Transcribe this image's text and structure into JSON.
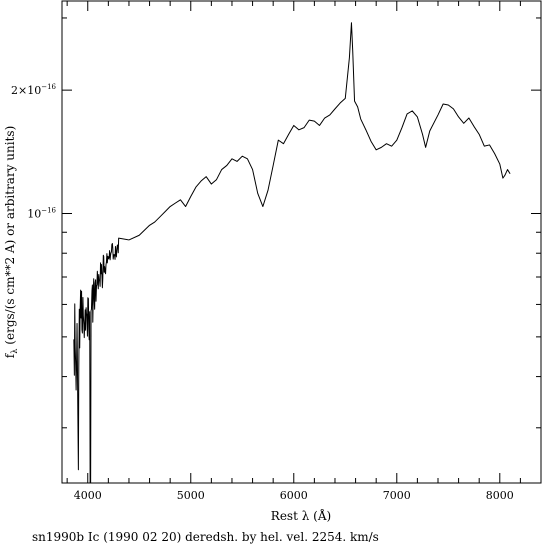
{
  "chart_data": {
    "type": "line",
    "title": "",
    "caption": "sn1990b Ic (1990 02 20) deredsh. by hel. vel. 2254. km/s",
    "xlabel": "Rest λ (Å)",
    "ylabel": "f_λ (ergs/(s cm**2 A) or arbitrary units)",
    "ylabel_main": "(ergs/(s cm**2 A) or arbitrary units)",
    "ylabel_sym": "f",
    "ylabel_sub": "λ",
    "y_scale": "log",
    "xlim": [
      3750,
      8400
    ],
    "ylim": [
      2.2e-17,
      3.3e-16
    ],
    "grid": false,
    "x_ticks": [
      {
        "value": 4000,
        "label": "4000"
      },
      {
        "value": 5000,
        "label": "5000"
      },
      {
        "value": 6000,
        "label": "6000"
      },
      {
        "value": 7000,
        "label": "7000"
      },
      {
        "value": 8000,
        "label": "8000"
      }
    ],
    "x_minor_step": 200,
    "y_ticks": [
      {
        "value": 1e-16,
        "mantissa": "10",
        "exp": "−16"
      },
      {
        "value": 2e-16,
        "mantissa": "2×10",
        "exp": "−16"
      }
    ],
    "y_minor_values": [
      3e-17,
      4e-17,
      5e-17,
      6e-17,
      7e-17,
      8e-17,
      9e-17,
      3e-16
    ],
    "series": [
      {
        "color": "#000000",
        "points": [
          [
            3865,
            4.93e-17
          ],
          [
            3870,
            4.03e-17
          ],
          [
            3874,
            6.02e-17
          ],
          [
            3878,
            4.72e-17
          ],
          [
            3883,
            4.26e-17
          ],
          [
            3887,
            3.71e-17
          ],
          [
            3891,
            4.19e-17
          ],
          [
            3896,
            5.39e-17
          ],
          [
            3900,
            4.21e-17
          ],
          [
            3904,
            3.22e-17
          ],
          [
            3909,
            2.37e-17
          ],
          [
            3913,
            4.2e-17
          ],
          [
            3918,
            5.84e-17
          ],
          [
            3922,
            4.7e-17
          ],
          [
            3926,
            5.82e-17
          ],
          [
            3931,
            6.5e-17
          ],
          [
            3935,
            5.56e-17
          ],
          [
            3940,
            6.46e-17
          ],
          [
            3944,
            5.2e-17
          ],
          [
            3948,
            5.11e-17
          ],
          [
            3953,
            6.24e-17
          ],
          [
            3957,
            5.63e-17
          ],
          [
            3962,
            5.37e-17
          ],
          [
            3966,
            4.98e-17
          ],
          [
            3970,
            5.3e-17
          ],
          [
            3975,
            5.82e-17
          ],
          [
            3979,
            5.19e-17
          ],
          [
            3984,
            5.89e-17
          ],
          [
            3988,
            5.65e-17
          ],
          [
            3992,
            5.68e-17
          ],
          [
            3997,
            5.02e-17
          ],
          [
            4001,
            6.23e-17
          ],
          [
            4006,
            6.2e-17
          ],
          [
            4010,
            5.22e-17
          ],
          [
            4014,
            4.92e-17
          ],
          [
            4019,
            5.76e-17
          ],
          [
            4023,
            2.1e-17
          ],
          [
            4028,
            2.1e-17
          ],
          [
            4032,
            5.79e-17
          ],
          [
            4036,
            5.84e-17
          ],
          [
            4041,
            6.48e-17
          ],
          [
            4045,
            6.69e-17
          ],
          [
            4049,
            5.43e-17
          ],
          [
            4054,
            6.46e-17
          ],
          [
            4058,
            6.93e-17
          ],
          [
            4063,
            6.13e-17
          ],
          [
            4067,
            5.84e-17
          ],
          [
            4071,
            6.76e-17
          ],
          [
            4076,
            6.89e-17
          ],
          [
            4080,
            6.11e-17
          ],
          [
            4085,
            6.67e-17
          ],
          [
            4089,
            6.69e-17
          ],
          [
            4093,
            7.23e-17
          ],
          [
            4098,
            6.89e-17
          ],
          [
            4102,
            6.55e-17
          ],
          [
            4107,
            7.1e-17
          ],
          [
            4111,
            6.88e-17
          ],
          [
            4115,
            6.86e-17
          ],
          [
            4120,
            6.64e-17
          ],
          [
            4124,
            7.58e-17
          ],
          [
            4129,
            7.13e-17
          ],
          [
            4133,
            7.51e-17
          ],
          [
            4137,
            7.13e-17
          ],
          [
            4142,
            6.59e-17
          ],
          [
            4146,
            6.94e-17
          ],
          [
            4151,
            7.91e-17
          ],
          [
            4155,
            7.86e-17
          ],
          [
            4159,
            7.19e-17
          ],
          [
            4164,
            7.42e-17
          ],
          [
            4168,
            7.21e-17
          ],
          [
            4173,
            7.13e-17
          ],
          [
            4177,
            7.5e-17
          ],
          [
            4181,
            7.6e-17
          ],
          [
            4186,
            7.98e-17
          ],
          [
            4190,
            7.58e-17
          ],
          [
            4195,
            7.86e-17
          ],
          [
            4199,
            7.84e-17
          ],
          [
            4203,
            7.75e-17
          ],
          [
            4208,
            7.82e-17
          ],
          [
            4212,
            8.12e-17
          ],
          [
            4217,
            7.71e-17
          ],
          [
            4221,
            7.9e-17
          ],
          [
            4225,
            8.01e-17
          ],
          [
            4230,
            8.06e-17
          ],
          [
            4234,
            8.4e-17
          ],
          [
            4239,
            8.45e-17
          ],
          [
            4243,
            8.23e-17
          ],
          [
            4247,
            7.74e-17
          ],
          [
            4252,
            7.93e-17
          ],
          [
            4256,
            7.94e-17
          ],
          [
            4261,
            7.88e-17
          ],
          [
            4265,
            7.73e-17
          ],
          [
            4269,
            8.31e-17
          ],
          [
            4274,
            7.97e-17
          ],
          [
            4278,
            7.84e-17
          ],
          [
            4283,
            8.2e-17
          ],
          [
            4287,
            8.36e-17
          ],
          [
            4291,
            8.38e-17
          ],
          [
            4296,
            8.02e-17
          ],
          [
            4300,
            8.71e-17
          ],
          [
            4400,
            8.62e-17
          ],
          [
            4500,
            8.85e-17
          ],
          [
            4600,
            9.36e-17
          ],
          [
            4650,
            9.53e-17
          ],
          [
            4700,
            9.81e-17
          ],
          [
            4750,
            1.01e-16
          ],
          [
            4800,
            1.04e-16
          ],
          [
            4850,
            1.06e-16
          ],
          [
            4900,
            1.08e-16
          ],
          [
            4950,
            1.04e-16
          ],
          [
            5000,
            1.1e-16
          ],
          [
            5050,
            1.16e-16
          ],
          [
            5100,
            1.2e-16
          ],
          [
            5150,
            1.23e-16
          ],
          [
            5200,
            1.18e-16
          ],
          [
            5250,
            1.21e-16
          ],
          [
            5300,
            1.28e-16
          ],
          [
            5350,
            1.31e-16
          ],
          [
            5400,
            1.36e-16
          ],
          [
            5450,
            1.34e-16
          ],
          [
            5500,
            1.38e-16
          ],
          [
            5550,
            1.36e-16
          ],
          [
            5600,
            1.28e-16
          ],
          [
            5650,
            1.12e-16
          ],
          [
            5700,
            1.04e-16
          ],
          [
            5750,
            1.14e-16
          ],
          [
            5800,
            1.31e-16
          ],
          [
            5850,
            1.51e-16
          ],
          [
            5900,
            1.48e-16
          ],
          [
            5950,
            1.56e-16
          ],
          [
            6000,
            1.64e-16
          ],
          [
            6050,
            1.6e-16
          ],
          [
            6100,
            1.62e-16
          ],
          [
            6150,
            1.69e-16
          ],
          [
            6200,
            1.68e-16
          ],
          [
            6250,
            1.64e-16
          ],
          [
            6300,
            1.71e-16
          ],
          [
            6350,
            1.74e-16
          ],
          [
            6400,
            1.8e-16
          ],
          [
            6450,
            1.86e-16
          ],
          [
            6500,
            1.91e-16
          ],
          [
            6540,
            2.4e-16
          ],
          [
            6560,
            2.92e-16
          ],
          [
            6572,
            2.5e-16
          ],
          [
            6590,
            1.88e-16
          ],
          [
            6620,
            1.82e-16
          ],
          [
            6650,
            1.7e-16
          ],
          [
            6700,
            1.6e-16
          ],
          [
            6750,
            1.5e-16
          ],
          [
            6800,
            1.43e-16
          ],
          [
            6850,
            1.45e-16
          ],
          [
            6900,
            1.48e-16
          ],
          [
            6950,
            1.46e-16
          ],
          [
            7000,
            1.51e-16
          ],
          [
            7050,
            1.62e-16
          ],
          [
            7100,
            1.75e-16
          ],
          [
            7150,
            1.78e-16
          ],
          [
            7200,
            1.72e-16
          ],
          [
            7250,
            1.56e-16
          ],
          [
            7280,
            1.45e-16
          ],
          [
            7320,
            1.59e-16
          ],
          [
            7400,
            1.74e-16
          ],
          [
            7450,
            1.85e-16
          ],
          [
            7500,
            1.84e-16
          ],
          [
            7550,
            1.8e-16
          ],
          [
            7600,
            1.72e-16
          ],
          [
            7650,
            1.66e-16
          ],
          [
            7700,
            1.71e-16
          ],
          [
            7750,
            1.63e-16
          ],
          [
            7800,
            1.56e-16
          ],
          [
            7850,
            1.46e-16
          ],
          [
            7900,
            1.47e-16
          ],
          [
            7950,
            1.4e-16
          ],
          [
            8000,
            1.32e-16
          ],
          [
            8030,
            1.22e-16
          ],
          [
            8050,
            1.24e-16
          ],
          [
            8075,
            1.28e-16
          ],
          [
            8100,
            1.25e-16
          ]
        ]
      }
    ]
  }
}
